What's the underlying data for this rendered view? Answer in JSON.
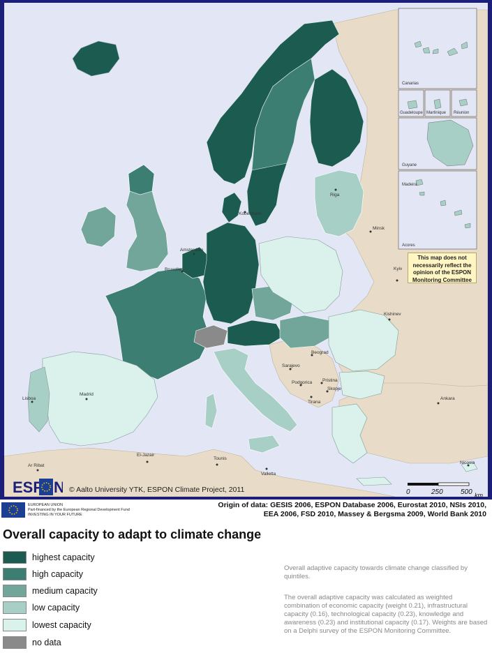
{
  "map": {
    "insets": [
      "Canarias",
      "Guadeloupe",
      "Martinique",
      "Réunion",
      "Guyane",
      "Madeira",
      "Acores"
    ],
    "cities": [
      "Riga",
      "Minsk",
      "Kyiv",
      "Kishinev",
      "Beograd",
      "Sarajevo",
      "Podgorica",
      "Pristina",
      "Skopje",
      "Tirana",
      "Ankara",
      "Amsterdam",
      "Bruxelles",
      "Kobenhavn",
      "El-Jazair",
      "Tounis",
      "Ar Ribat",
      "Lisboa",
      "Madrid",
      "Valletta",
      "Nicosia"
    ],
    "disclaimer": "This map does not necessarily reflect the opinion of the ESPON Monitoring Committee",
    "copyright": "© Aalto University YTK, ESPON Climate Project, 2011",
    "logo": "ESPON",
    "scale": {
      "ticks": [
        "0",
        "250",
        "500"
      ],
      "unit": "km"
    },
    "colors": {
      "sea": "#e3e6f5",
      "nonespon": "#e8dcc8",
      "highest": "#1c5c50",
      "high": "#3c7e72",
      "medium": "#72a69a",
      "low": "#a8cfc6",
      "lowest": "#daf1ec",
      "nodata": "#8a8a8a",
      "border": "#1c1f7a"
    }
  },
  "footer": {
    "eu_lines": [
      "EUROPEAN UNION",
      "Part-financed by the European Regional Development Fund",
      "INVESTING IN YOUR FUTURE"
    ],
    "origin_line1": "Origin of data: GESIS 2006, ESPON Database 2006, Eurostat 2010, NSIs 2010,",
    "origin_line2": "EEA 2006, FSD 2010, Massey & Bergsma 2009, World Bank 2010"
  },
  "legend": {
    "title": "Overall capacity to adapt to climate change",
    "items": [
      {
        "label": "highest capacity",
        "color": "#1c5c50"
      },
      {
        "label": "high capacity",
        "color": "#3c7e72"
      },
      {
        "label": "medium capacity",
        "color": "#72a69a"
      },
      {
        "label": "low capacity",
        "color": "#a8cfc6"
      },
      {
        "label": "lowest capacity",
        "color": "#daf1ec"
      },
      {
        "label": "no data",
        "color": "#8a8a8a"
      }
    ]
  },
  "description": {
    "p1": "Overall adaptive capacity towards climate change classified by quintiles.",
    "p2": "The overall adaptive capacity was calculated as weighted combination of economic capacity (weight 0.21), infrastructural capacity (0.16), technological capacity (0.23), knowledge and awareness (0.23) and institutional capacity (0.17). Weights are based on a Delphi survey of the ESPON Monitoring Committee."
  }
}
